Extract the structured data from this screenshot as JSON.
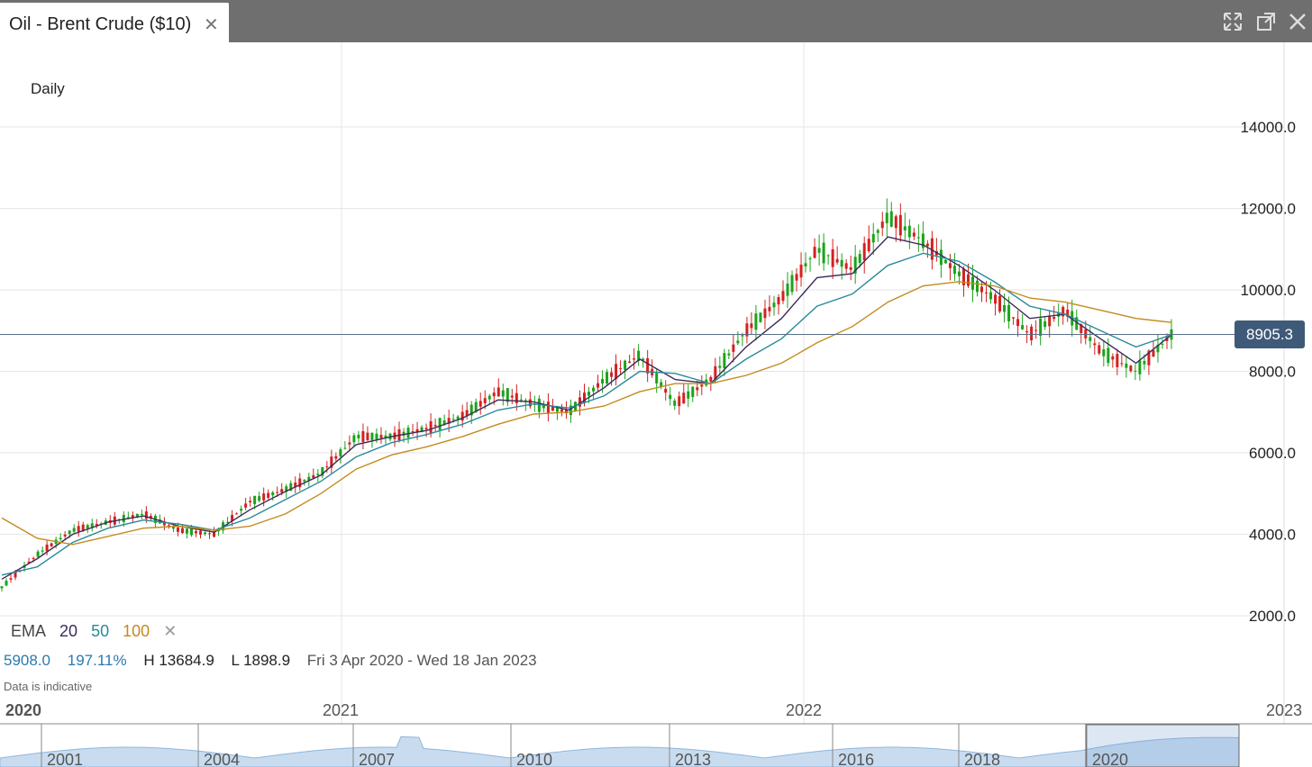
{
  "tab": {
    "title": "Oil - Brent Crude ($10)",
    "close_symbol": "✕"
  },
  "window_controls": [
    "expand-icon",
    "popout-icon",
    "close-icon"
  ],
  "period_label": "Daily",
  "indicator": {
    "name": "EMA",
    "periods": [
      "20",
      "50",
      "100"
    ],
    "colors": [
      "#3d2a5c",
      "#2a8a9a",
      "#c48a1c"
    ],
    "remove_symbol": "✕"
  },
  "stats": {
    "change": "5908.0",
    "change_pct": "197.11%",
    "high": "H 13684.9",
    "low": "L 1898.9",
    "range": "Fri 3 Apr 2020 - Wed 18 Jan 2023"
  },
  "note": "Data is indicative",
  "current_price": "8905.3",
  "navigator_years": [
    "2001",
    "2004",
    "2007",
    "2010",
    "2013",
    "2016",
    "2018",
    "2020"
  ],
  "chart_data": {
    "type": "line",
    "yticks": [
      14000,
      12000,
      10000,
      8000,
      6000,
      4000,
      2000
    ],
    "ytick_labels": [
      "14000.0",
      "12000.0",
      "10000.0",
      "8000.0",
      "6000.0",
      "4000.0",
      "2000.0"
    ],
    "xtick_labels": [
      "2020",
      "2021",
      "2022",
      "2023"
    ],
    "x": [
      "2020-04",
      "2020-05",
      "2020-06",
      "2020-07",
      "2020-08",
      "2020-09",
      "2020-10",
      "2020-11",
      "2020-12",
      "2021-01",
      "2021-02",
      "2021-03",
      "2021-04",
      "2021-05",
      "2021-06",
      "2021-07",
      "2021-08",
      "2021-09",
      "2021-10",
      "2021-11",
      "2021-12",
      "2022-01",
      "2022-02",
      "2022-03",
      "2022-04",
      "2022-05",
      "2022-06",
      "2022-07",
      "2022-08",
      "2022-09",
      "2022-10",
      "2022-11",
      "2022-12",
      "2023-01"
    ],
    "series": [
      {
        "type": "candlestick",
        "close": [
          2700,
          3500,
          4100,
          4300,
          4500,
          4100,
          4000,
          4800,
          5100,
          5500,
          6400,
          6400,
          6600,
          6900,
          7500,
          7200,
          7000,
          7800,
          8400,
          7200,
          7800,
          9000,
          9800,
          11000,
          10500,
          11800,
          11200,
          10400,
          9800,
          8900,
          9500,
          8500,
          8000,
          8905
        ],
        "up_color": "#1aa31a",
        "down_color": "#d42020"
      },
      {
        "name": "20",
        "values": [
          2900,
          3400,
          4000,
          4300,
          4450,
          4200,
          4050,
          4600,
          5050,
          5450,
          6200,
          6400,
          6550,
          6850,
          7300,
          7250,
          7050,
          7600,
          8300,
          7800,
          7700,
          8600,
          9300,
          10300,
          10400,
          11300,
          11100,
          10600,
          10000,
          9300,
          9400,
          8800,
          8200,
          8900
        ]
      },
      {
        "name": "50",
        "values": [
          3000,
          3200,
          3800,
          4150,
          4350,
          4250,
          4100,
          4400,
          4850,
          5300,
          5900,
          6250,
          6450,
          6700,
          7050,
          7200,
          7100,
          7400,
          8000,
          7950,
          7700,
          8300,
          8800,
          9600,
          9900,
          10600,
          10900,
          10700,
          10200,
          9600,
          9400,
          9000,
          8600,
          8900
        ]
      },
      {
        "name": "100",
        "values": [
          4400,
          3900,
          3750,
          3950,
          4150,
          4200,
          4100,
          4200,
          4500,
          5000,
          5600,
          5950,
          6150,
          6400,
          6700,
          6950,
          7000,
          7150,
          7500,
          7700,
          7700,
          7900,
          8200,
          8700,
          9100,
          9700,
          10100,
          10200,
          10100,
          9800,
          9700,
          9500,
          9300,
          9200
        ]
      }
    ],
    "current_price": 8905.3
  }
}
